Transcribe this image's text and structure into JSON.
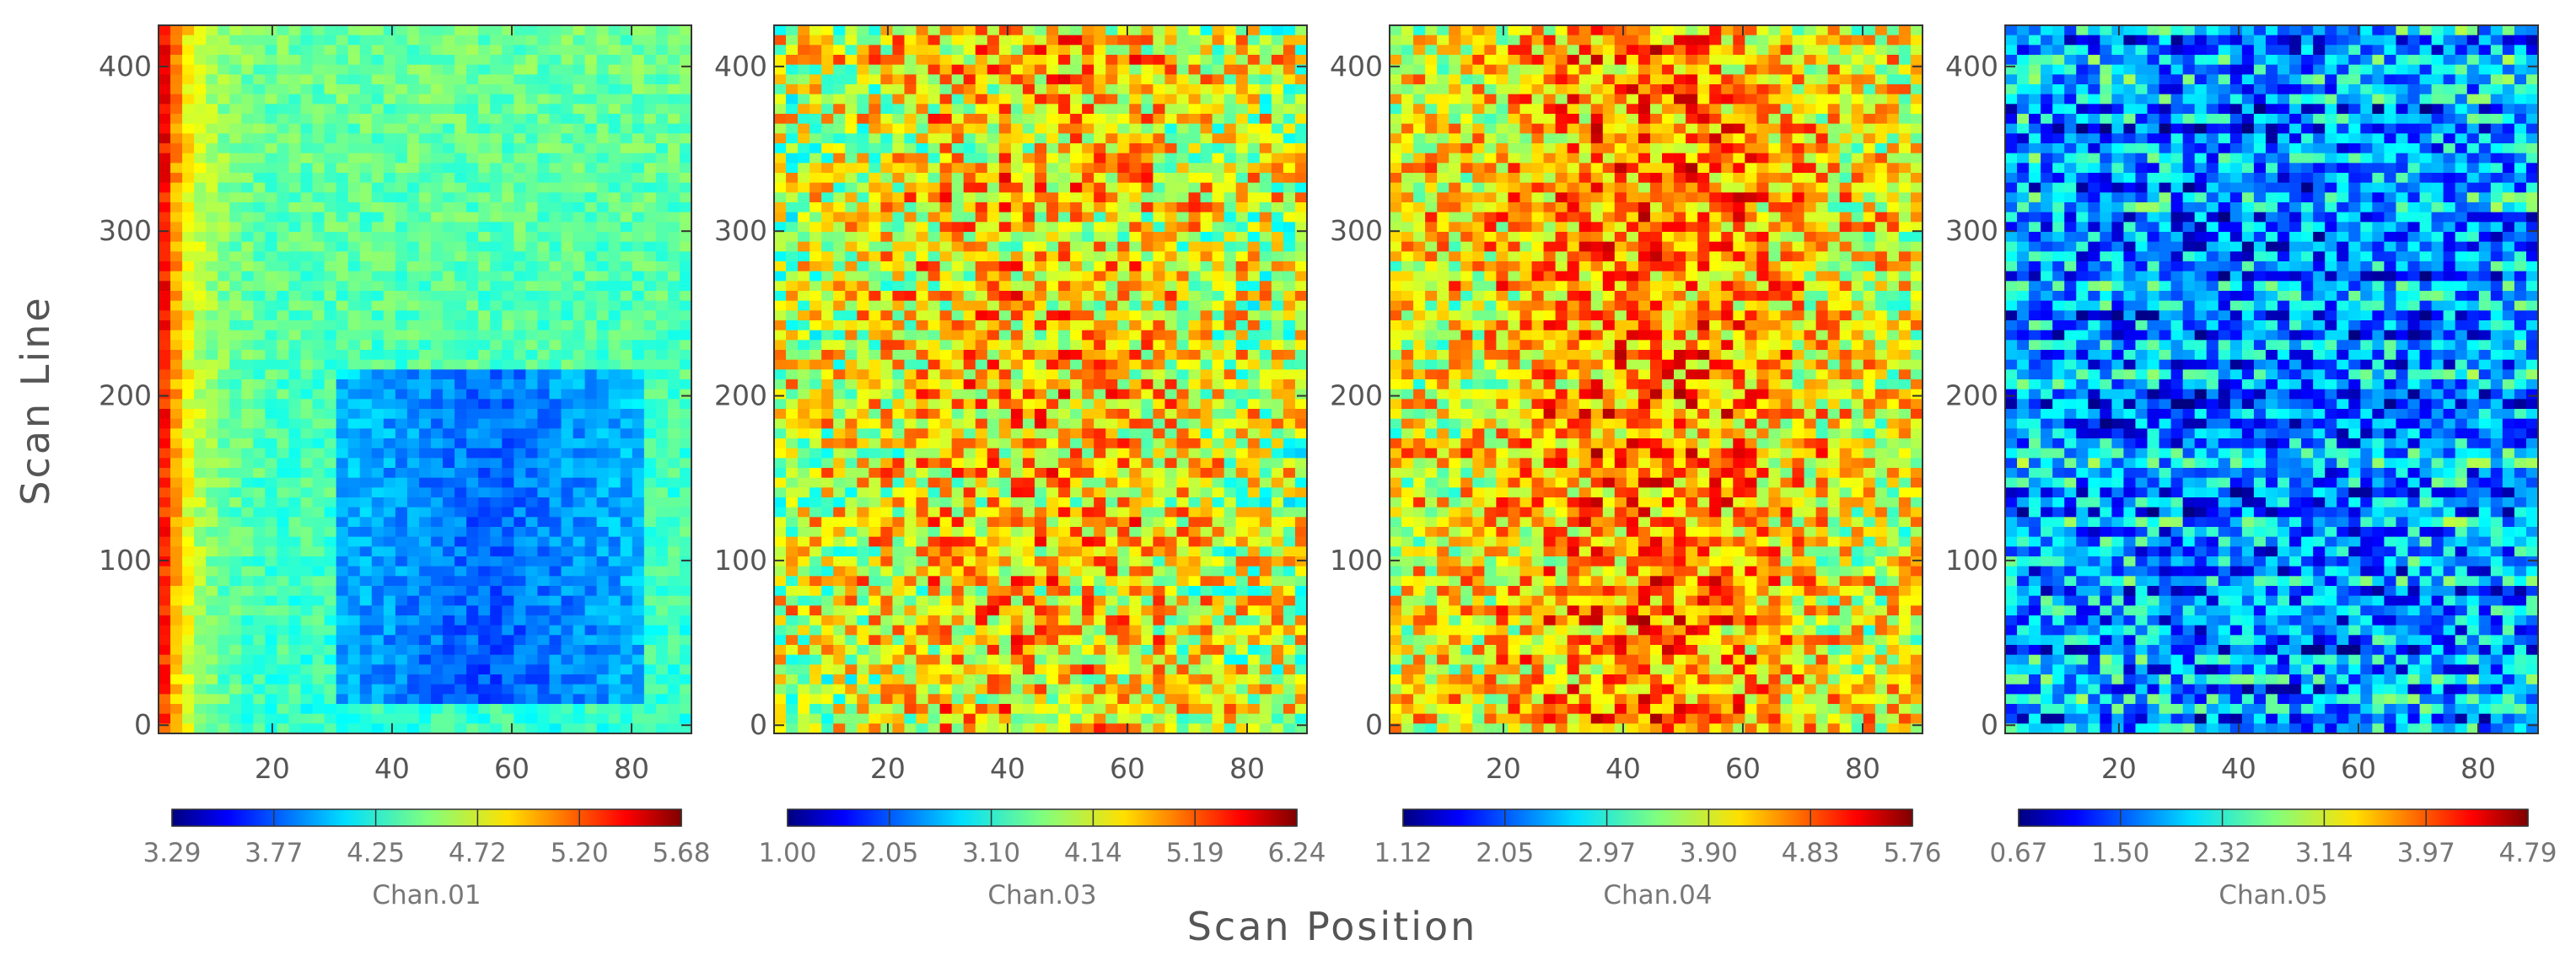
{
  "chart_data": {
    "type": "heatmap",
    "ylabel": "Scan Line",
    "xlabel": "Scan Position",
    "xlim": [
      1,
      90
    ],
    "ylim": [
      -5,
      425
    ],
    "xticks": [
      20,
      40,
      60,
      80
    ],
    "yticks": [
      0,
      100,
      200,
      300,
      400
    ],
    "colormap": "jet",
    "panels": [
      {
        "name": "Chan.01",
        "vmin": 3.29,
        "vmax": 5.68,
        "colorbar_ticks": [
          "3.29",
          "3.77",
          "4.25",
          "4.72",
          "5.20",
          "5.68"
        ],
        "pattern": "warm left edge, cool (low) block near positions 35-80 and lines 15-220"
      },
      {
        "name": "Chan.03",
        "vmin": 1.0,
        "vmax": 6.24,
        "colorbar_ticks": [
          "1.00",
          "2.05",
          "3.10",
          "4.14",
          "5.19",
          "6.24"
        ],
        "pattern": "noisy, mostly green-yellow with orange center"
      },
      {
        "name": "Chan.04",
        "vmin": 1.12,
        "vmax": 5.76,
        "colorbar_ticks": [
          "1.12",
          "2.05",
          "2.97",
          "3.90",
          "4.83",
          "5.76"
        ],
        "pattern": "noisy, yellow-orange with warmer center"
      },
      {
        "name": "Chan.05",
        "vmin": 0.67,
        "vmax": 4.79,
        "colorbar_ticks": [
          "0.67",
          "1.50",
          "2.32",
          "3.14",
          "3.97",
          "4.79"
        ],
        "pattern": "noisy, dark blue with cyan striping"
      }
    ]
  }
}
